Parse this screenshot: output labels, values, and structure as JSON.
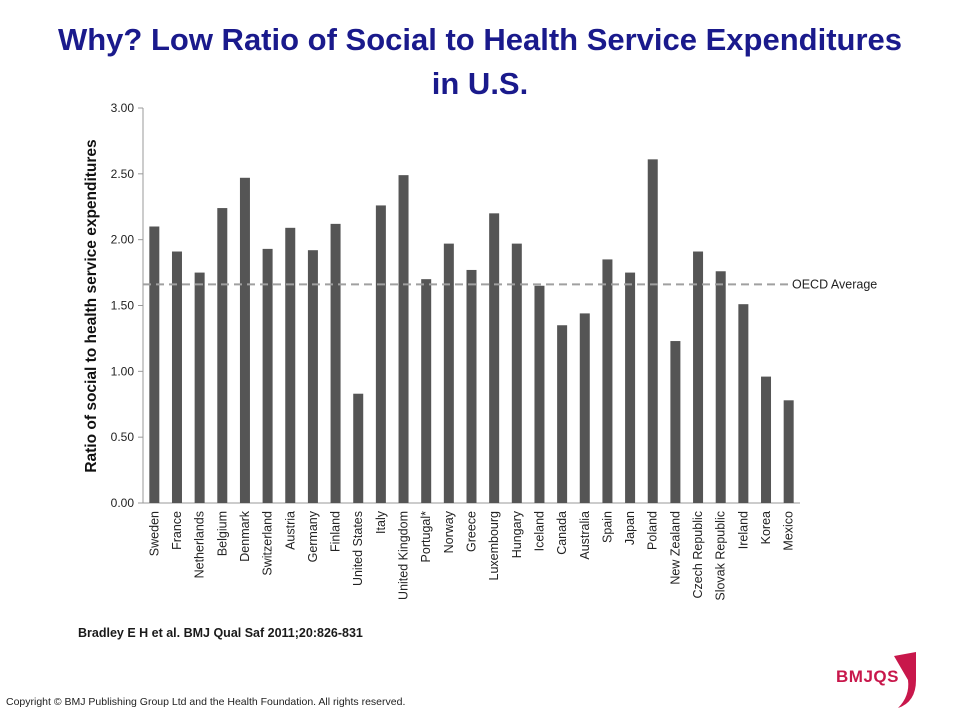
{
  "slide": {
    "title": "Why? Low Ratio of Social to Health Service Expenditures in U.S.",
    "citation": "Bradley E H et al. BMJ Qual Saf 2011;20:826-831",
    "copyright": "Copyright © BMJ Publishing Group Ltd and the Health Foundation. All rights reserved.",
    "logo_text": "BMJQS"
  },
  "colors": {
    "title": "#1a1a8c",
    "bar": "#555555",
    "average_line": "#a0a0a0",
    "logo": "#c8174b"
  },
  "chart_data": {
    "type": "bar",
    "title": "",
    "xlabel": "",
    "ylabel": "Ratio of  social to health service expenditures",
    "ylim": [
      0,
      3
    ],
    "yticks": [
      "0.00",
      "0.50",
      "1.00",
      "1.50",
      "2.00",
      "2.50",
      "3.00"
    ],
    "grid": false,
    "categories": [
      "Sweden",
      "France",
      "Netherlands",
      "Belgium",
      "Denmark",
      "Switzerland",
      "Austria",
      "Germany",
      "Finland",
      "United States",
      "Italy",
      "United Kingdom",
      "Portugal*",
      "Norway",
      "Greece",
      "Luxembourg",
      "Hungary",
      "Iceland",
      "Canada",
      "Australia",
      "Spain",
      "Japan",
      "Poland",
      "New Zealand",
      "Czech Republic",
      "Slovak Republic",
      "Ireland",
      "Korea",
      "Mexico"
    ],
    "values": [
      2.1,
      1.91,
      1.75,
      2.24,
      2.47,
      1.93,
      2.09,
      1.92,
      2.12,
      0.83,
      2.26,
      2.49,
      1.7,
      1.97,
      1.77,
      2.2,
      1.97,
      1.65,
      1.35,
      1.44,
      1.85,
      1.75,
      2.61,
      1.23,
      1.91,
      1.76,
      1.51,
      0.96,
      0.78
    ],
    "reference_line": {
      "label": "OECD Average",
      "value": 1.66
    }
  }
}
